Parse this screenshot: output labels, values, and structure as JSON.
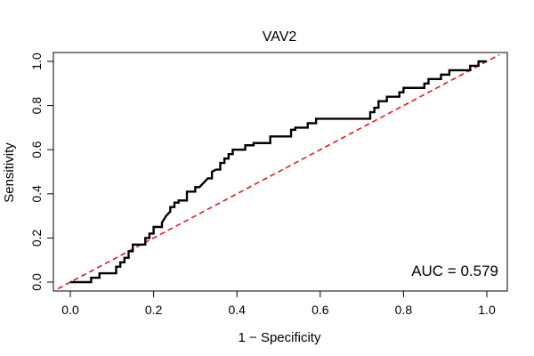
{
  "chart_data": {
    "type": "line",
    "title": "VAV2",
    "xlabel": "1 − Specificity",
    "ylabel": "Sensitivity",
    "xlim": [
      0,
      1
    ],
    "ylim": [
      0,
      1
    ],
    "x_ticks": [
      "0.0",
      "0.2",
      "0.4",
      "0.6",
      "0.8",
      "1.0"
    ],
    "y_ticks": [
      "0.0",
      "0.2",
      "0.4",
      "0.6",
      "0.8",
      "1.0"
    ],
    "grid": false,
    "legend": "none",
    "annotation": "AUC = 0.579",
    "series": [
      {
        "color": "#000000",
        "style": "solid",
        "points": [
          [
            0.0,
            0.0
          ],
          [
            0.01,
            0.0
          ],
          [
            0.05,
            0.0
          ],
          [
            0.05,
            0.02
          ],
          [
            0.07,
            0.02
          ],
          [
            0.07,
            0.04
          ],
          [
            0.11,
            0.04
          ],
          [
            0.11,
            0.07
          ],
          [
            0.12,
            0.07
          ],
          [
            0.12,
            0.09
          ],
          [
            0.13,
            0.09
          ],
          [
            0.13,
            0.11
          ],
          [
            0.14,
            0.11
          ],
          [
            0.14,
            0.14
          ],
          [
            0.15,
            0.14
          ],
          [
            0.15,
            0.17
          ],
          [
            0.18,
            0.17
          ],
          [
            0.18,
            0.2
          ],
          [
            0.19,
            0.2
          ],
          [
            0.19,
            0.22
          ],
          [
            0.2,
            0.22
          ],
          [
            0.2,
            0.25
          ],
          [
            0.22,
            0.25
          ],
          [
            0.22,
            0.27
          ],
          [
            0.23,
            0.3
          ],
          [
            0.24,
            0.32
          ],
          [
            0.24,
            0.34
          ],
          [
            0.25,
            0.34
          ],
          [
            0.25,
            0.36
          ],
          [
            0.26,
            0.36
          ],
          [
            0.26,
            0.37
          ],
          [
            0.28,
            0.37
          ],
          [
            0.28,
            0.41
          ],
          [
            0.3,
            0.41
          ],
          [
            0.3,
            0.43
          ],
          [
            0.31,
            0.43
          ],
          [
            0.32,
            0.45
          ],
          [
            0.33,
            0.47
          ],
          [
            0.34,
            0.47
          ],
          [
            0.34,
            0.5
          ],
          [
            0.35,
            0.51
          ],
          [
            0.36,
            0.51
          ],
          [
            0.36,
            0.54
          ],
          [
            0.37,
            0.54
          ],
          [
            0.37,
            0.56
          ],
          [
            0.38,
            0.56
          ],
          [
            0.38,
            0.58
          ],
          [
            0.39,
            0.58
          ],
          [
            0.39,
            0.6
          ],
          [
            0.42,
            0.6
          ],
          [
            0.42,
            0.62
          ],
          [
            0.44,
            0.62
          ],
          [
            0.44,
            0.63
          ],
          [
            0.48,
            0.63
          ],
          [
            0.48,
            0.66
          ],
          [
            0.53,
            0.66
          ],
          [
            0.53,
            0.69
          ],
          [
            0.54,
            0.69
          ],
          [
            0.54,
            0.7
          ],
          [
            0.57,
            0.7
          ],
          [
            0.57,
            0.72
          ],
          [
            0.59,
            0.72
          ],
          [
            0.59,
            0.74
          ],
          [
            0.72,
            0.74
          ],
          [
            0.72,
            0.77
          ],
          [
            0.73,
            0.77
          ],
          [
            0.73,
            0.79
          ],
          [
            0.74,
            0.79
          ],
          [
            0.74,
            0.82
          ],
          [
            0.76,
            0.82
          ],
          [
            0.76,
            0.84
          ],
          [
            0.79,
            0.84
          ],
          [
            0.79,
            0.86
          ],
          [
            0.8,
            0.86
          ],
          [
            0.8,
            0.88
          ],
          [
            0.85,
            0.88
          ],
          [
            0.85,
            0.9
          ],
          [
            0.86,
            0.9
          ],
          [
            0.86,
            0.92
          ],
          [
            0.89,
            0.92
          ],
          [
            0.89,
            0.94
          ],
          [
            0.91,
            0.94
          ],
          [
            0.91,
            0.96
          ],
          [
            0.96,
            0.96
          ],
          [
            0.96,
            0.98
          ],
          [
            0.98,
            0.98
          ],
          [
            0.98,
            1.0
          ],
          [
            1.0,
            1.0
          ]
        ]
      },
      {
        "color": "#e41a1c",
        "style": "dashed",
        "points": [
          [
            -0.03,
            -0.03
          ],
          [
            1.03,
            1.03
          ]
        ]
      }
    ]
  }
}
